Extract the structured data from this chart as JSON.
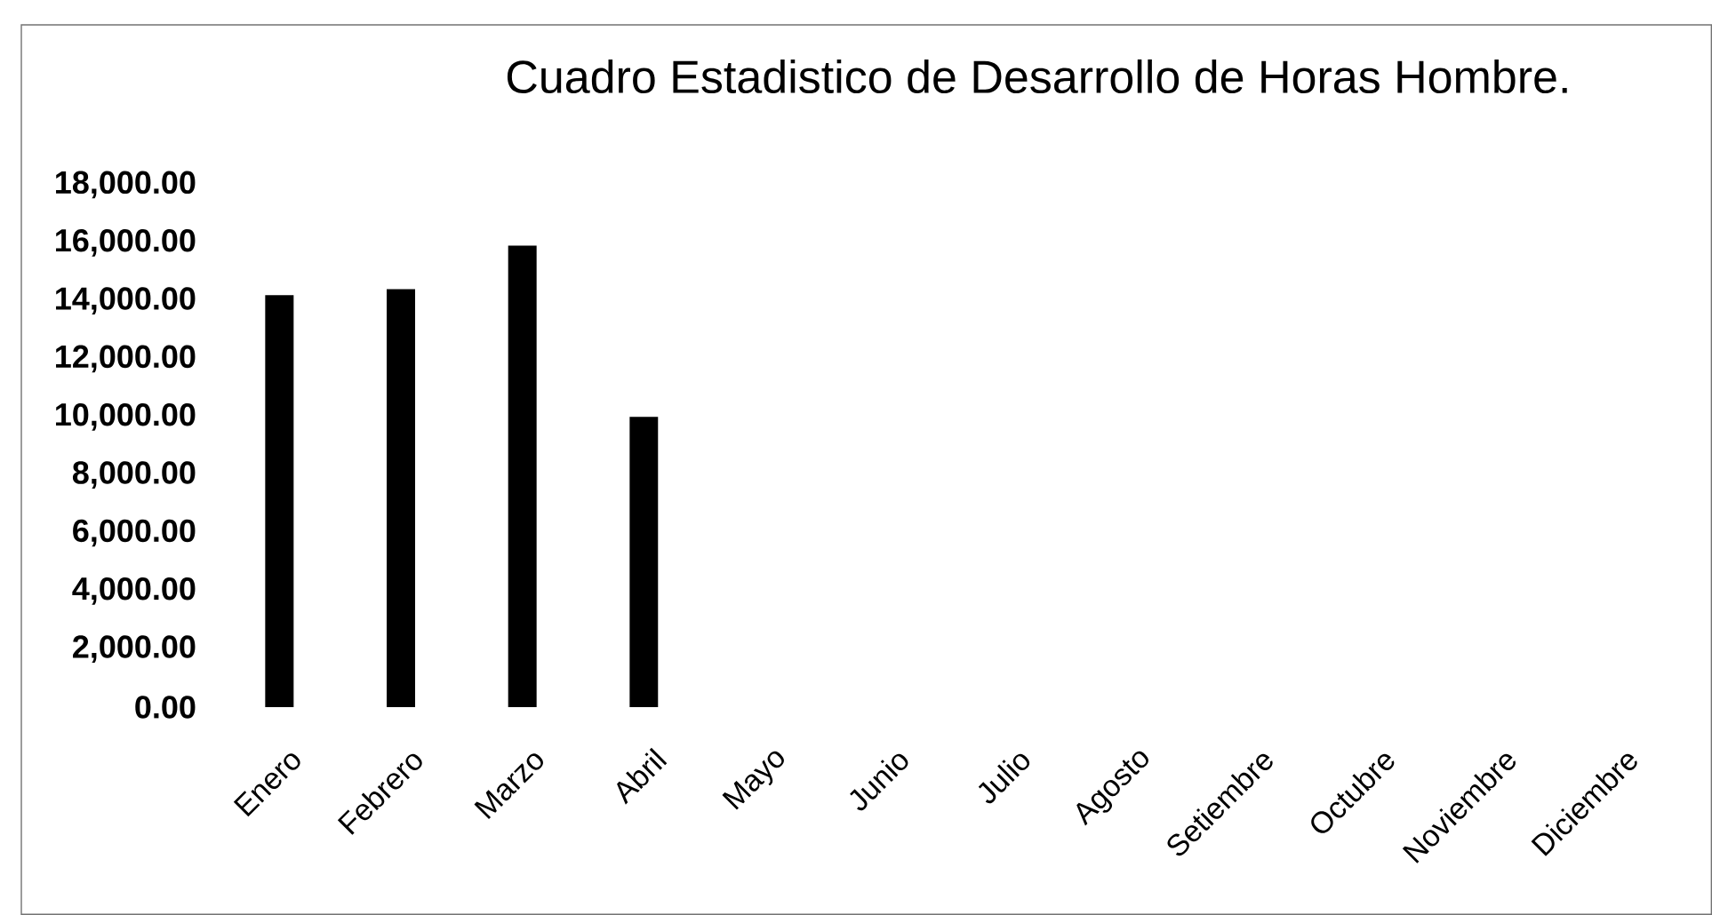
{
  "chart_data": {
    "type": "bar",
    "title": "Cuadro Estadistico de Desarrollo de Horas Hombre.",
    "categories": [
      "Enero",
      "Febrero",
      "Marzo",
      "Abril",
      "Mayo",
      "Junio",
      "Julio",
      "Agosto",
      "Setiembre",
      "Octubre",
      "Noviembre",
      "Diciembre"
    ],
    "values": [
      14200,
      14400,
      15900,
      10000,
      null,
      null,
      null,
      null,
      null,
      null,
      null,
      null
    ],
    "color": "#000000",
    "ylim": [
      0,
      18000
    ],
    "yticks": [
      {
        "value": 0,
        "label": "0.00"
      },
      {
        "value": 2000,
        "label": "2,000.00"
      },
      {
        "value": 4000,
        "label": "4,000.00"
      },
      {
        "value": 6000,
        "label": "6,000.00"
      },
      {
        "value": 8000,
        "label": "8,000.00"
      },
      {
        "value": 10000,
        "label": "10,000.00"
      },
      {
        "value": 12000,
        "label": "12,000.00"
      },
      {
        "value": 14000,
        "label": "14,000.00"
      },
      {
        "value": 16000,
        "label": "16,000.00"
      },
      {
        "value": 18000,
        "label": "18,000.00"
      }
    ]
  }
}
